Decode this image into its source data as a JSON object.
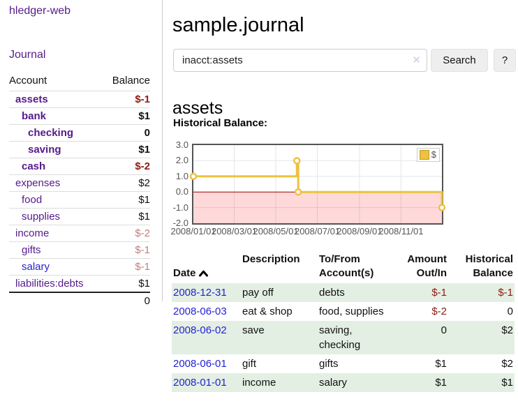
{
  "app": {
    "brand": "hledger-web",
    "nav": {
      "journal": "Journal"
    }
  },
  "sidebar": {
    "header": {
      "account": "Account",
      "balance": "Balance"
    },
    "accounts": [
      {
        "name": "assets",
        "indent": 1,
        "bold": true,
        "link": "purple",
        "balance": "$-1",
        "balance_class": "neg-strong"
      },
      {
        "name": "bank",
        "indent": 2,
        "bold": true,
        "link": "purple",
        "balance": "$1",
        "balance_class": "pos"
      },
      {
        "name": "checking",
        "indent": 3,
        "bold": true,
        "link": "purple",
        "balance": "0",
        "balance_class": "pos"
      },
      {
        "name": "saving",
        "indent": 3,
        "bold": true,
        "link": "purple",
        "balance": "$1",
        "balance_class": "pos"
      },
      {
        "name": "cash",
        "indent": 2,
        "bold": true,
        "link": "purple",
        "balance": "$-2",
        "balance_class": "neg-strong"
      },
      {
        "name": "expenses",
        "indent": 1,
        "bold": false,
        "link": "purple",
        "balance": "$2",
        "balance_class": "pos"
      },
      {
        "name": "food",
        "indent": 2,
        "bold": false,
        "link": "purple",
        "balance": "$1",
        "balance_class": "pos"
      },
      {
        "name": "supplies",
        "indent": 2,
        "bold": false,
        "link": "purple",
        "balance": "$1",
        "balance_class": "pos"
      },
      {
        "name": "income",
        "indent": 1,
        "bold": false,
        "link": "purple",
        "balance": "$-2",
        "balance_class": "neg-muted"
      },
      {
        "name": "gifts",
        "indent": 2,
        "bold": false,
        "link": "purple",
        "balance": "$-1",
        "balance_class": "neg-muted"
      },
      {
        "name": "salary",
        "indent": 2,
        "bold": false,
        "link": "blue",
        "balance": "$-1",
        "balance_class": "neg-muted"
      },
      {
        "name": "liabilities:debts",
        "indent": 1,
        "bold": false,
        "link": "purple",
        "balance": "$1",
        "balance_class": "pos"
      }
    ],
    "total": "0"
  },
  "main": {
    "title": "sample.journal",
    "search": {
      "value": "inacct:assets",
      "clear_icon": "✕",
      "button": "Search",
      "help": "?"
    },
    "account_heading": "assets",
    "chart_label": "Historical Balance:"
  },
  "chart_data": {
    "type": "line",
    "title": "Historical Balance:",
    "series": [
      {
        "name": "$",
        "color": "#EDC240",
        "step": true,
        "points": [
          {
            "date": "2008-01-01",
            "value": 1
          },
          {
            "date": "2008-06-01",
            "value": 2
          },
          {
            "date": "2008-06-03",
            "value": 0
          },
          {
            "date": "2008-12-31",
            "value": -1
          }
        ]
      }
    ],
    "xrange": [
      "2008-01-01",
      "2008-12-31"
    ],
    "ylim": [
      -2,
      3
    ],
    "yticks": [
      "3.0",
      "2.0",
      "1.0",
      "0.0",
      "-1.0",
      "-2.0"
    ],
    "ytick_values": [
      3,
      2,
      1,
      0,
      -1,
      -2
    ],
    "xticks": [
      "2008/01/01",
      "2008/03/01",
      "2008/05/01",
      "2008/07/01",
      "2008/09/01",
      "2008/11/01"
    ],
    "legend": "$",
    "legend_position": "top-right",
    "grid": true,
    "grid_color": "#e6e6e6",
    "negative_region_color": "rgba(255,0,0,0.15)",
    "zero_line_color": "#990000"
  },
  "register": {
    "columns": [
      {
        "label": "Date",
        "align": "left",
        "sorted": "asc"
      },
      {
        "label": "Description",
        "align": "left"
      },
      {
        "label": "To/From\nAccount(s)",
        "align": "left"
      },
      {
        "label": "Amount\nOut/In",
        "align": "right"
      },
      {
        "label": "Historical\nBalance",
        "align": "right"
      }
    ],
    "rows": [
      {
        "date": "2008-12-31",
        "description": "pay off",
        "accounts": "debts",
        "amount": "$-1",
        "amount_neg": true,
        "balance": "$-1",
        "balance_neg": true
      },
      {
        "date": "2008-06-03",
        "description": "eat & shop",
        "accounts": "food, supplies",
        "amount": "$-2",
        "amount_neg": true,
        "balance": "0",
        "balance_neg": false
      },
      {
        "date": "2008-06-02",
        "description": "save",
        "accounts": "saving,\nchecking",
        "amount": "0",
        "amount_neg": false,
        "balance": "$2",
        "balance_neg": false
      },
      {
        "date": "2008-06-01",
        "description": "gift",
        "accounts": "gifts",
        "amount": "$1",
        "amount_neg": false,
        "balance": "$2",
        "balance_neg": false
      },
      {
        "date": "2008-01-01",
        "description": "income",
        "accounts": "salary",
        "amount": "$1",
        "amount_neg": false,
        "balance": "$1",
        "balance_neg": false
      }
    ]
  }
}
